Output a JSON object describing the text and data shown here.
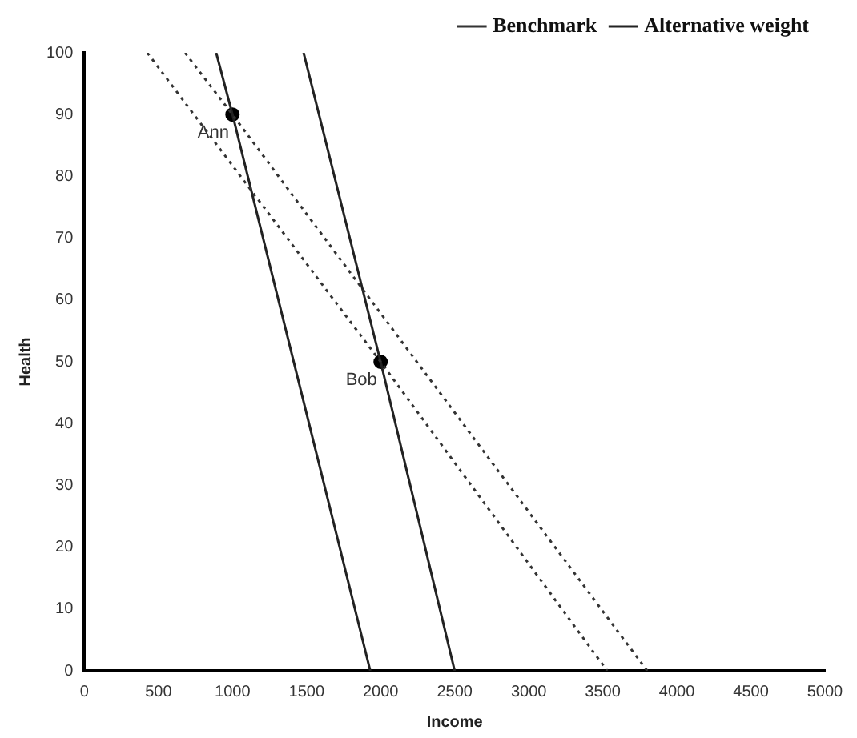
{
  "chart_data": {
    "type": "line",
    "xlabel": "Income",
    "ylabel": "Health",
    "xlim": [
      0,
      5000
    ],
    "ylim": [
      0,
      100
    ],
    "xticks": [
      0,
      500,
      1000,
      1500,
      2000,
      2500,
      3000,
      3500,
      4000,
      4500,
      5000
    ],
    "yticks": [
      0,
      10,
      20,
      30,
      40,
      50,
      60,
      70,
      80,
      90,
      100
    ],
    "grid": false,
    "legend": "top right",
    "marker": "none",
    "series": [
      {
        "name": "Benchmark",
        "color": "#333333",
        "line_style": "dotted",
        "x": [
          425,
          2000,
          3530
        ],
        "values": [
          100,
          50,
          0
        ]
      },
      {
        "color": "#333333",
        "line_style": "dotted",
        "x": [
          680,
          1000,
          3800
        ],
        "values": [
          100,
          90,
          0
        ]
      },
      {
        "name": "Alternative weight",
        "color": "#222222",
        "line_style": "solid",
        "x": [
          890,
          1000,
          1930
        ],
        "values": [
          100,
          90,
          0
        ]
      },
      {
        "color": "#222222",
        "line_style": "solid",
        "x": [
          1480,
          2000,
          2500
        ],
        "values": [
          100,
          50,
          0
        ]
      },
      {
        "type": "scatter",
        "color": "#000000",
        "marker": "circle",
        "x": [
          1000,
          2000
        ],
        "values": [
          90,
          50
        ]
      }
    ],
    "annotations": [
      {
        "text": "Ann",
        "x": 1000,
        "y": 90
      },
      {
        "text": "Bob",
        "x": 2000,
        "y": 50
      }
    ]
  }
}
